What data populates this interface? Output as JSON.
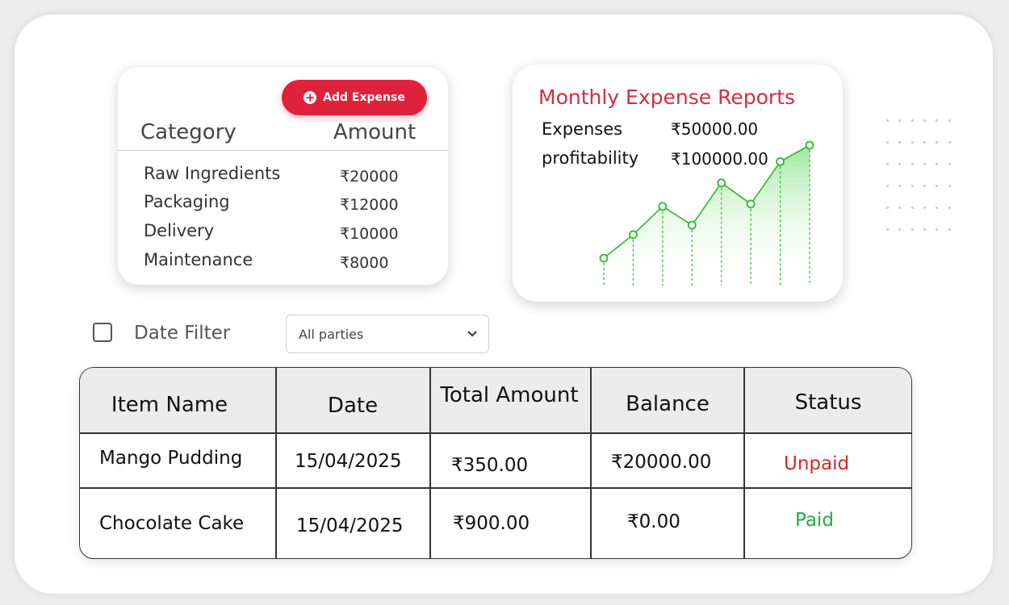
{
  "category_card": {
    "add_button_label": "Add Expense",
    "header_category": "Category",
    "header_amount": "Amount",
    "rows": [
      {
        "name": "Raw Ingredients",
        "amount": "₹20000"
      },
      {
        "name": "Packaging",
        "amount": "₹12000"
      },
      {
        "name": "Delivery",
        "amount": "₹10000"
      },
      {
        "name": "Maintenance",
        "amount": "₹8000"
      }
    ]
  },
  "report_card": {
    "title": "Monthly Expense Reports",
    "expenses_label": "Expenses",
    "expenses_value": "₹50000.00",
    "profit_label": "profitability",
    "profit_value": "₹100000.00",
    "trend_values": [
      1,
      2,
      3.2,
      2.4,
      4.2,
      3.3,
      5.1,
      5.8
    ]
  },
  "filters": {
    "date_filter_label": "Date Filter",
    "date_filter_checked": false,
    "party_select_value": "All parties"
  },
  "table": {
    "headers": [
      "Item Name",
      "Date",
      "Total Amount",
      "Balance",
      "Status"
    ],
    "rows": [
      {
        "item": "Mango Pudding",
        "date": "15/04/2025",
        "total": "₹350.00",
        "balance": "₹20000.00",
        "status": "Unpaid"
      },
      {
        "item": "Chocolate Cake",
        "date": "15/04/2025",
        "total": "₹900.00",
        "balance": "₹0.00",
        "status": "Paid"
      }
    ]
  },
  "colors": {
    "accent_red": "#e0213b",
    "title_red": "#d32f3f",
    "chart_green": "#2eb82e",
    "paid_green": "#23a844",
    "unpaid_red": "#d62828"
  }
}
